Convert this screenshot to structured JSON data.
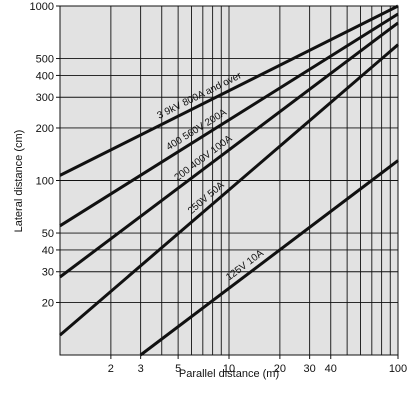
{
  "chart_data": {
    "type": "line",
    "xlabel": "Parallel distance (m)",
    "ylabel": "Lateral distance (cm)",
    "xscale": "log",
    "yscale": "log",
    "xlim": [
      1,
      100
    ],
    "ylim": [
      10,
      1000
    ],
    "grid": true,
    "background": "#e2e2e2",
    "line_color": "#111111",
    "x_ticks": [
      {
        "value": 2,
        "label": "2"
      },
      {
        "value": 3,
        "label": "3"
      },
      {
        "value": 5,
        "label": "5"
      },
      {
        "value": 10,
        "label": "10"
      },
      {
        "value": 20,
        "label": "20"
      },
      {
        "value": 30,
        "label": "30"
      },
      {
        "value": 40,
        "label": "40"
      },
      {
        "value": 100,
        "label": "100"
      }
    ],
    "y_ticks": [
      {
        "value": 20,
        "label": "20"
      },
      {
        "value": 30,
        "label": "30"
      },
      {
        "value": 40,
        "label": "40"
      },
      {
        "value": 50,
        "label": "50"
      },
      {
        "value": 100,
        "label": "100"
      },
      {
        "value": 200,
        "label": "200"
      },
      {
        "value": 300,
        "label": "300"
      },
      {
        "value": 400,
        "label": "400"
      },
      {
        "value": 500,
        "label": "500"
      },
      {
        "value": 1000,
        "label": "1000"
      }
    ],
    "series": [
      {
        "name": "3   9kV 800A and over",
        "x": [
          1,
          100
        ],
        "y": [
          107,
          1000
        ]
      },
      {
        "name": "400   560V 200A",
        "x": [
          1,
          100
        ],
        "y": [
          55,
          900
        ]
      },
      {
        "name": "200   400V 100A",
        "x": [
          1,
          100
        ],
        "y": [
          28,
          800
        ]
      },
      {
        "name": "250V  50A",
        "x": [
          1,
          100
        ],
        "y": [
          13,
          600
        ]
      },
      {
        "name": "125V  10A",
        "x": [
          3,
          100
        ],
        "y": [
          10,
          130
        ]
      }
    ]
  }
}
